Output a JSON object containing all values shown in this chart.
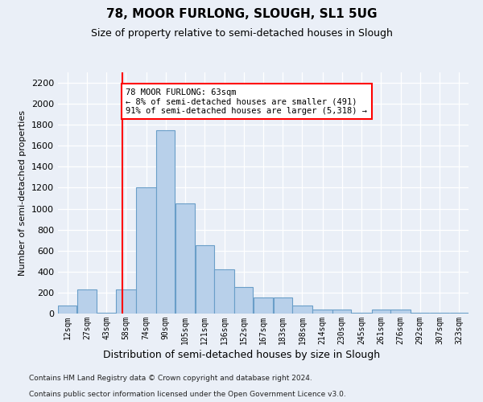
{
  "title": "78, MOOR FURLONG, SLOUGH, SL1 5UG",
  "subtitle": "Size of property relative to semi-detached houses in Slough",
  "xlabel": "Distribution of semi-detached houses by size in Slough",
  "ylabel": "Number of semi-detached properties",
  "annotation_line1": "78 MOOR FURLONG: 63sqm",
  "annotation_line2": "← 8% of semi-detached houses are smaller (491)",
  "annotation_line3": "91% of semi-detached houses are larger (5,318) →",
  "property_size": 63,
  "bar_color": "#b8d0ea",
  "bar_edge_color": "#6a9ec8",
  "redline_x": 63,
  "categories": [
    "12sqm",
    "27sqm",
    "43sqm",
    "58sqm",
    "74sqm",
    "90sqm",
    "105sqm",
    "121sqm",
    "136sqm",
    "152sqm",
    "167sqm",
    "183sqm",
    "198sqm",
    "214sqm",
    "230sqm",
    "245sqm",
    "261sqm",
    "276sqm",
    "292sqm",
    "307sqm",
    "323sqm"
  ],
  "bin_edges": [
    12,
    27,
    43,
    58,
    74,
    90,
    105,
    121,
    136,
    152,
    167,
    183,
    198,
    214,
    230,
    245,
    261,
    276,
    292,
    307,
    323,
    338
  ],
  "values": [
    80,
    230,
    10,
    230,
    1200,
    1750,
    1050,
    650,
    420,
    250,
    150,
    150,
    80,
    40,
    40,
    10,
    40,
    40,
    10,
    10,
    10
  ],
  "ylim": [
    0,
    2300
  ],
  "yticks": [
    0,
    200,
    400,
    600,
    800,
    1000,
    1200,
    1400,
    1600,
    1800,
    2000,
    2200
  ],
  "footer1": "Contains HM Land Registry data © Crown copyright and database right 2024.",
  "footer2": "Contains public sector information licensed under the Open Government Licence v3.0.",
  "bg_color": "#eaeff7",
  "plot_bg_color": "#eaeff7"
}
